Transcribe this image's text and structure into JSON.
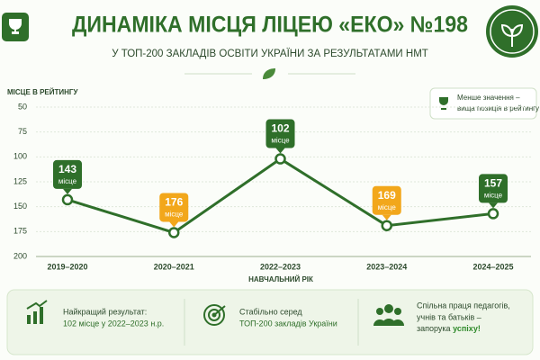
{
  "title": "ДИНАМІКА МІСЦЯ ЛІЦЕЮ «ЕКО» №198",
  "subtitle": "У ТОП-200 ЗАКЛАДІВ ОСВІТИ УКРАЇНИ ЗА РЕЗУЛЬТАТАМИ НМТ",
  "chart_data": {
    "type": "line",
    "y_label": "МІСЦЕ В РЕЙТИНГУ",
    "x_label": "НАВЧАЛЬНИЙ РІК",
    "categories": [
      "2019–2020",
      "2020–2021",
      "2022–2023",
      "2023–2024",
      "2024–2025"
    ],
    "values": [
      143,
      176,
      102,
      169,
      157
    ],
    "value_label_unit": "місце",
    "label_colors": [
      "#2f6f2a",
      "#f2a71b",
      "#2f6f2a",
      "#f2a71b",
      "#2f6f2a"
    ],
    "color": "#2f6f2a",
    "ylim": [
      50,
      200
    ],
    "yticks": [
      50,
      75,
      100,
      125,
      150,
      175,
      200
    ],
    "invert_y": true,
    "grid": true,
    "note": [
      "Менше значення –",
      "вища позиція в рейтингу"
    ]
  },
  "cards": [
    {
      "line1": "Найкращий результат:",
      "line2": "102 місце у 2022–2023 н.р."
    },
    {
      "line1": "Стабільно серед",
      "line2": "ТОП-200 закладів України"
    },
    {
      "line1": "Спільна праця педагогів,",
      "line2": "учнів та батьків –",
      "line3": "запорука",
      "highlight": "успіху!"
    }
  ]
}
